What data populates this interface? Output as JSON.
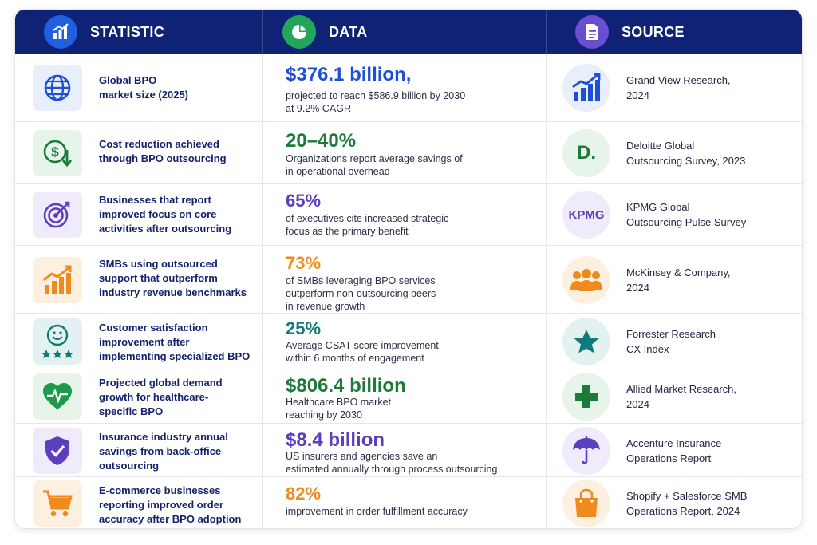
{
  "header": {
    "statistic_label": "STATISTIC",
    "data_label": "DATA",
    "source_label": "SOURCE"
  },
  "rows": [
    {
      "statistic": "Global BPO\nmarket size (2025)",
      "value": "$376.1 billion,",
      "desc": "projected to reach $586.9 billion by 2030\nat 9.2% CAGR",
      "source": "Grand View Research,\n2024",
      "stat_icon": "globe-icon",
      "source_icon": "bar-chart-trend-icon",
      "accent": "#1e4fd8"
    },
    {
      "statistic": "Cost reduction achieved\nthrough BPO outsourcing",
      "value": "20–40%",
      "desc": "Organizations report average savings of\nin operational overhead",
      "source": "Deloitte Global\nOutsourcing Survey, 2023",
      "stat_icon": "dollar-down-icon",
      "source_icon": "deloitte-logo",
      "source_logo_text": "D.",
      "accent": "#1d7a3a"
    },
    {
      "statistic": "Businesses that report\nimproved focus on core\nactivities after outsourcing",
      "value": "65%",
      "desc": "of executives cite increased strategic\nfocus as the primary benefit",
      "source": "KPMG Global\nOutsourcing Pulse Survey",
      "stat_icon": "target-icon",
      "source_icon": "kpmg-logo",
      "source_logo_text": "KPMG",
      "accent": "#5b3fbf"
    },
    {
      "statistic": "SMBs using outsourced\nsupport that outperform\nindustry revenue benchmarks",
      "value": "73%",
      "desc": "of SMBs leveraging BPO services\noutperform non-outsourcing peers\nin revenue growth",
      "source": "McKinsey & Company,\n2024",
      "stat_icon": "growth-chart-icon",
      "source_icon": "people-group-icon",
      "accent": "#f08a1c"
    },
    {
      "statistic": "Customer satisfaction\nimprovement after\nimplementing specialized BPO",
      "value": "25%",
      "desc": "Average CSAT score improvement\nwithin 6 months of engagement",
      "source": "Forrester Research\nCX Index",
      "stat_icon": "smiley-stars-icon",
      "source_icon": "star-icon",
      "accent": "#127a7a"
    },
    {
      "statistic": "Projected global demand\ngrowth for healthcare-\nspecific BPO",
      "value": "$806.4 billion",
      "desc": "Healthcare BPO market\nreaching by 2030",
      "source": "Allied Market Research,\n2024",
      "stat_icon": "heart-pulse-icon",
      "source_icon": "medical-cross-icon",
      "accent": "#1d7a3a"
    },
    {
      "statistic": "Insurance industry annual\nsavings from back-office\noutsourcing",
      "value": "$8.4 billion",
      "desc": "US insurers and agencies save an\nestimated annually through process outsourcing",
      "source": "Accenture Insurance\nOperations Report",
      "stat_icon": "shield-check-icon",
      "source_icon": "umbrella-icon",
      "accent": "#5b3fbf"
    },
    {
      "statistic": "E-commerce businesses\nreporting improved order\naccuracy after BPO adoption",
      "value": "82%",
      "desc": "improvement in order fulfillment accuracy",
      "source": "Shopify + Salesforce SMB\nOperations Report, 2024",
      "stat_icon": "shopping-cart-icon",
      "source_icon": "shopping-bag-icon",
      "accent": "#f08a1c"
    }
  ]
}
